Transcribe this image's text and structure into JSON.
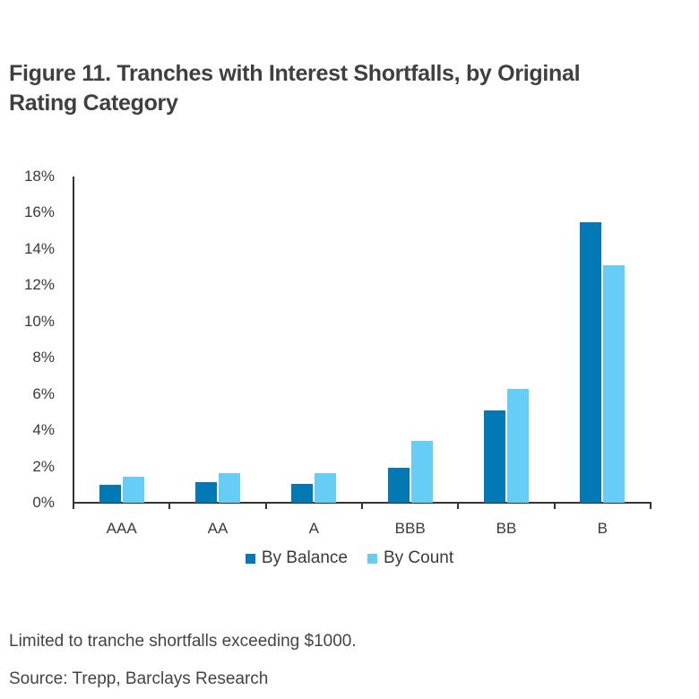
{
  "title": {
    "line1": "Figure 11. Tranches with Interest Shortfalls, by Original",
    "line2": "Rating Category"
  },
  "legend": {
    "balance": "By Balance",
    "count": "By Count"
  },
  "colors": {
    "balance": "#0079b5",
    "count": "#66cdf6",
    "axis": "#333333"
  },
  "footnote": "Limited to tranche shortfalls exceeding $1000.",
  "source": "Source: Trepp, Barclays Research",
  "y_ticks": [
    "18%",
    "16%",
    "14%",
    "12%",
    "10%",
    "8%",
    "6%",
    "4%",
    "2%",
    "0%"
  ],
  "chart_data": {
    "type": "bar",
    "title": "Figure 11. Tranches with Interest Shortfalls, by Original Rating Category",
    "xlabel": "",
    "ylabel": "",
    "categories": [
      "AAA",
      "AA",
      "A",
      "BBB",
      "BB",
      "B"
    ],
    "series": [
      {
        "name": "By Balance",
        "color": "#0079b5",
        "values": [
          1.0,
          1.15,
          1.05,
          1.95,
          5.1,
          15.5
        ]
      },
      {
        "name": "By Count",
        "color": "#66cdf6",
        "values": [
          1.45,
          1.65,
          1.65,
          3.4,
          6.3,
          13.1
        ]
      }
    ],
    "ylim": [
      0,
      18
    ],
    "y_tick_step": 2,
    "y_format": "percent",
    "grid": false,
    "legend_position": "bottom",
    "notes": [
      "Limited to tranche shortfalls exceeding $1000.",
      "Source: Trepp, Barclays Research"
    ]
  }
}
